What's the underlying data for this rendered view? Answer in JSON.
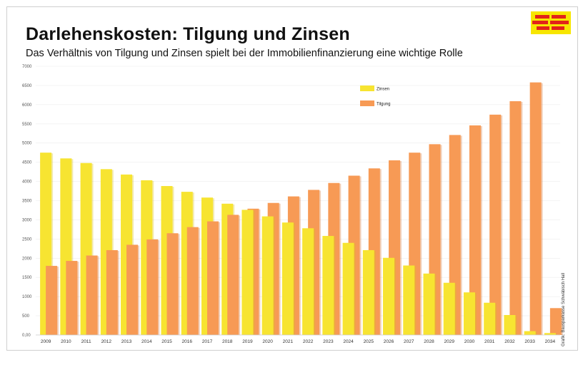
{
  "header": {
    "title": "Darlehenskosten: Tilgung und Zinsen",
    "subtitle": "Das Verhältnis von Tilgung und Zinsen spielt bei der Immobilienfinanzierung eine wichtige Rolle"
  },
  "credit": "Grafik: Bausparkasse Schwäbisch Hall",
  "colors": {
    "zinsen": "#f7e431",
    "tilgung": "#f79a55",
    "logo_bg": "#f7e600",
    "logo_bars": "#e2231a"
  },
  "chart_data": {
    "type": "bar",
    "categories": [
      "2009",
      "2010",
      "2011",
      "2012",
      "2013",
      "2014",
      "2015",
      "2016",
      "2017",
      "2018",
      "2019",
      "2020",
      "2021",
      "2022",
      "2023",
      "2024",
      "2025",
      "2026",
      "2027",
      "2028",
      "2029",
      "2030",
      "2031",
      "2032",
      "2033",
      "2034"
    ],
    "series": [
      {
        "name": "Zinsen",
        "values": [
          4750,
          4600,
          4480,
          4320,
          4180,
          4030,
          3880,
          3730,
          3580,
          3420,
          3260,
          3090,
          2930,
          2780,
          2580,
          2400,
          2210,
          2010,
          1810,
          1600,
          1360,
          1110,
          840,
          520,
          100,
          50
        ]
      },
      {
        "name": "Tilgung",
        "values": [
          1800,
          1930,
          2070,
          2210,
          2350,
          2490,
          2650,
          2810,
          2960,
          3130,
          3290,
          3440,
          3610,
          3780,
          3960,
          4150,
          4340,
          4550,
          4750,
          4970,
          5210,
          5460,
          5740,
          6090,
          6580,
          700
        ]
      }
    ],
    "yticks": [
      "7000",
      "6500",
      "6000",
      "5500",
      "5000",
      "4500",
      "4000",
      "3500",
      "3000",
      "2500",
      "2000",
      "1500",
      "1000",
      "500",
      "0,00"
    ],
    "ylim": [
      0,
      7000
    ],
    "legend": {
      "placement": "top-center",
      "items": [
        "Zinsen",
        "Tilgung"
      ]
    },
    "grid": true,
    "title": "Darlehenskosten: Tilgung und Zinsen",
    "xlabel": "",
    "ylabel": ""
  }
}
